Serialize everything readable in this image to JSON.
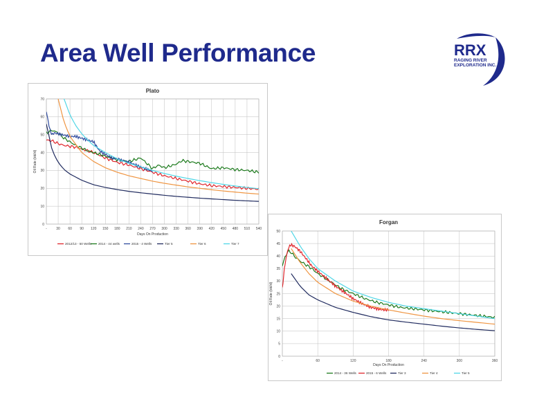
{
  "slide": {
    "title": "Area Well Performance"
  },
  "logo": {
    "main": "RRX",
    "line1": "RAGING RIVER",
    "line2": "EXPLORATION INC."
  },
  "chart_data": [
    {
      "type": "line",
      "title": "Plato",
      "xlabel": "Days On Production",
      "ylabel": "Oil Rate (bbl/d)",
      "xlim": [
        0,
        540
      ],
      "ylim": [
        0,
        70
      ],
      "xticks": [
        "-",
        "30",
        "60",
        "90",
        "120",
        "150",
        "180",
        "210",
        "240",
        "270",
        "300",
        "330",
        "360",
        "390",
        "420",
        "450",
        "480",
        "510",
        "540"
      ],
      "yticks": [
        "0",
        "10",
        "20",
        "30",
        "40",
        "50",
        "60",
        "70"
      ],
      "grid": true,
      "legend_position": "bottom",
      "series": [
        {
          "name": "2012/13 - 50 Wells",
          "color": "#e0252b",
          "noisy": true,
          "x": [
            0,
            15,
            30,
            45,
            60,
            75,
            90,
            105,
            120,
            150,
            180,
            210,
            240,
            270,
            300,
            330,
            360,
            390,
            420,
            450,
            480,
            510,
            540
          ],
          "y": [
            47,
            46.5,
            45,
            44,
            43.5,
            43,
            42,
            41,
            40,
            37,
            34.5,
            33,
            31,
            29,
            27,
            25.5,
            24,
            22.5,
            21.5,
            21,
            20.5,
            20,
            19.5
          ]
        },
        {
          "name": "2014 - 44 wells",
          "color": "#1c7a1c",
          "noisy": true,
          "x": [
            0,
            15,
            30,
            45,
            60,
            75,
            90,
            105,
            120,
            150,
            180,
            210,
            240,
            255,
            270,
            285,
            300,
            330,
            345,
            360,
            390,
            420,
            450,
            480,
            510,
            540
          ],
          "y": [
            51,
            52.5,
            51,
            48,
            46,
            44,
            42.5,
            41,
            40,
            38,
            36,
            35,
            37,
            34,
            31,
            33,
            31.5,
            33.5,
            35.5,
            35,
            34,
            31,
            31.5,
            30.5,
            30,
            29
          ]
        },
        {
          "name": "2015 - 4 Wells",
          "color": "#2e4a9e",
          "noisy": true,
          "x": [
            0,
            5,
            10,
            15,
            20,
            30,
            40,
            50,
            60,
            75,
            90,
            105,
            120,
            135,
            150,
            165,
            180,
            195,
            210,
            240,
            270
          ],
          "y": [
            63,
            57,
            52,
            50,
            51,
            50.5,
            50,
            49.5,
            49,
            49,
            48,
            47,
            46,
            41,
            39,
            37,
            36.5,
            35.5,
            34.5,
            32,
            29.5
          ]
        },
        {
          "name": "Tier 5",
          "color": "#1f2a5e",
          "noisy": false,
          "x": [
            0,
            15,
            30,
            45,
            60,
            90,
            120,
            150,
            180,
            210,
            240,
            270,
            300,
            330,
            360,
            390,
            420,
            450,
            480,
            510,
            540
          ],
          "y": [
            56,
            41,
            34.5,
            30.5,
            28,
            24.5,
            22,
            20.5,
            19.3,
            18.3,
            17.5,
            16.8,
            16.1,
            15.5,
            15,
            14.5,
            14.1,
            13.7,
            13.3,
            13,
            12.7
          ]
        },
        {
          "name": "Tier 6",
          "color": "#ef9440",
          "noisy": false,
          "x": [
            30,
            45,
            60,
            90,
            120,
            150,
            180,
            210,
            240,
            270,
            300,
            330,
            360,
            390,
            420,
            450,
            480,
            510,
            540
          ],
          "y": [
            70,
            57,
            49,
            40,
            35,
            31.5,
            29,
            27,
            25.5,
            24,
            22.8,
            21.8,
            20.8,
            20,
            19.2,
            18.5,
            17.9,
            17.3,
            16.8
          ]
        },
        {
          "name": "Tier 7",
          "color": "#4fd6e6",
          "noisy": false,
          "x": [
            45,
            60,
            75,
            90,
            105,
            120,
            150,
            180,
            210,
            240,
            270,
            300,
            330,
            360,
            390,
            420,
            450,
            480,
            510,
            540
          ],
          "y": [
            70,
            61,
            55,
            50.5,
            47,
            44,
            40,
            36.5,
            34,
            32,
            30,
            28.3,
            26.8,
            25.5,
            24.3,
            23.2,
            22.2,
            21.3,
            20.5,
            19.8
          ]
        }
      ]
    },
    {
      "type": "line",
      "title": "Forgan",
      "xlabel": "Days On Production",
      "ylabel": "Oil Rate (bbl/d)",
      "xlim": [
        0,
        360
      ],
      "ylim": [
        0,
        50
      ],
      "xticks": [
        "-",
        "60",
        "120",
        "180",
        "240",
        "300",
        "360"
      ],
      "yticks": [
        "0",
        "5",
        "10",
        "15",
        "20",
        "25",
        "30",
        "35",
        "40",
        "45",
        "50"
      ],
      "grid": true,
      "legend_position": "bottom",
      "series": [
        {
          "name": "2014 - 36 Wells",
          "color": "#1c7a1c",
          "noisy": true,
          "x": [
            0,
            5,
            10,
            15,
            20,
            30,
            40,
            50,
            60,
            80,
            100,
            120,
            140,
            160,
            180,
            200,
            220,
            240,
            260,
            280,
            300,
            320,
            340,
            360
          ],
          "y": [
            36,
            40,
            42,
            41.5,
            40,
            38,
            36.5,
            35,
            33,
            30,
            27,
            25,
            23,
            21.5,
            20.5,
            19.5,
            19,
            18.5,
            18,
            17.5,
            17,
            16.5,
            16,
            15.5
          ]
        },
        {
          "name": "2015 - 6 Wells",
          "color": "#e0252b",
          "noisy": true,
          "x": [
            0,
            3,
            6,
            10,
            14,
            20,
            30,
            40,
            50,
            60,
            75,
            90,
            105,
            120,
            135,
            150,
            160,
            170,
            180
          ],
          "y": [
            27,
            34,
            39,
            43,
            44.5,
            44,
            42,
            39,
            36,
            34,
            31,
            28,
            25.5,
            23,
            21,
            19.5,
            19,
            18.5,
            18.5
          ]
        },
        {
          "name": "Tier 3",
          "color": "#1f2a5e",
          "noisy": false,
          "x": [
            15,
            30,
            45,
            60,
            90,
            120,
            150,
            180,
            210,
            240,
            270,
            300,
            330,
            360
          ],
          "y": [
            33,
            28,
            24.5,
            22.5,
            19.5,
            17.5,
            15.8,
            14.5,
            13.6,
            12.8,
            12,
            11.3,
            10.7,
            10.2
          ]
        },
        {
          "name": "Tier 4",
          "color": "#ef9440",
          "noisy": false,
          "x": [
            15,
            30,
            45,
            60,
            90,
            120,
            150,
            180,
            210,
            240,
            270,
            300,
            330,
            360
          ],
          "y": [
            43,
            37.5,
            33,
            29.5,
            25,
            22,
            20,
            18.5,
            17.2,
            16,
            15,
            14.2,
            13.5,
            12.8
          ]
        },
        {
          "name": "Tier 5",
          "color": "#4fd6e6",
          "noisy": false,
          "x": [
            15,
            30,
            45,
            60,
            90,
            120,
            150,
            180,
            210,
            240,
            270,
            300,
            330,
            360
          ],
          "y": [
            50,
            44,
            39,
            35,
            30,
            26,
            23.5,
            21.5,
            20,
            19,
            18,
            17,
            16,
            15
          ]
        }
      ]
    }
  ]
}
